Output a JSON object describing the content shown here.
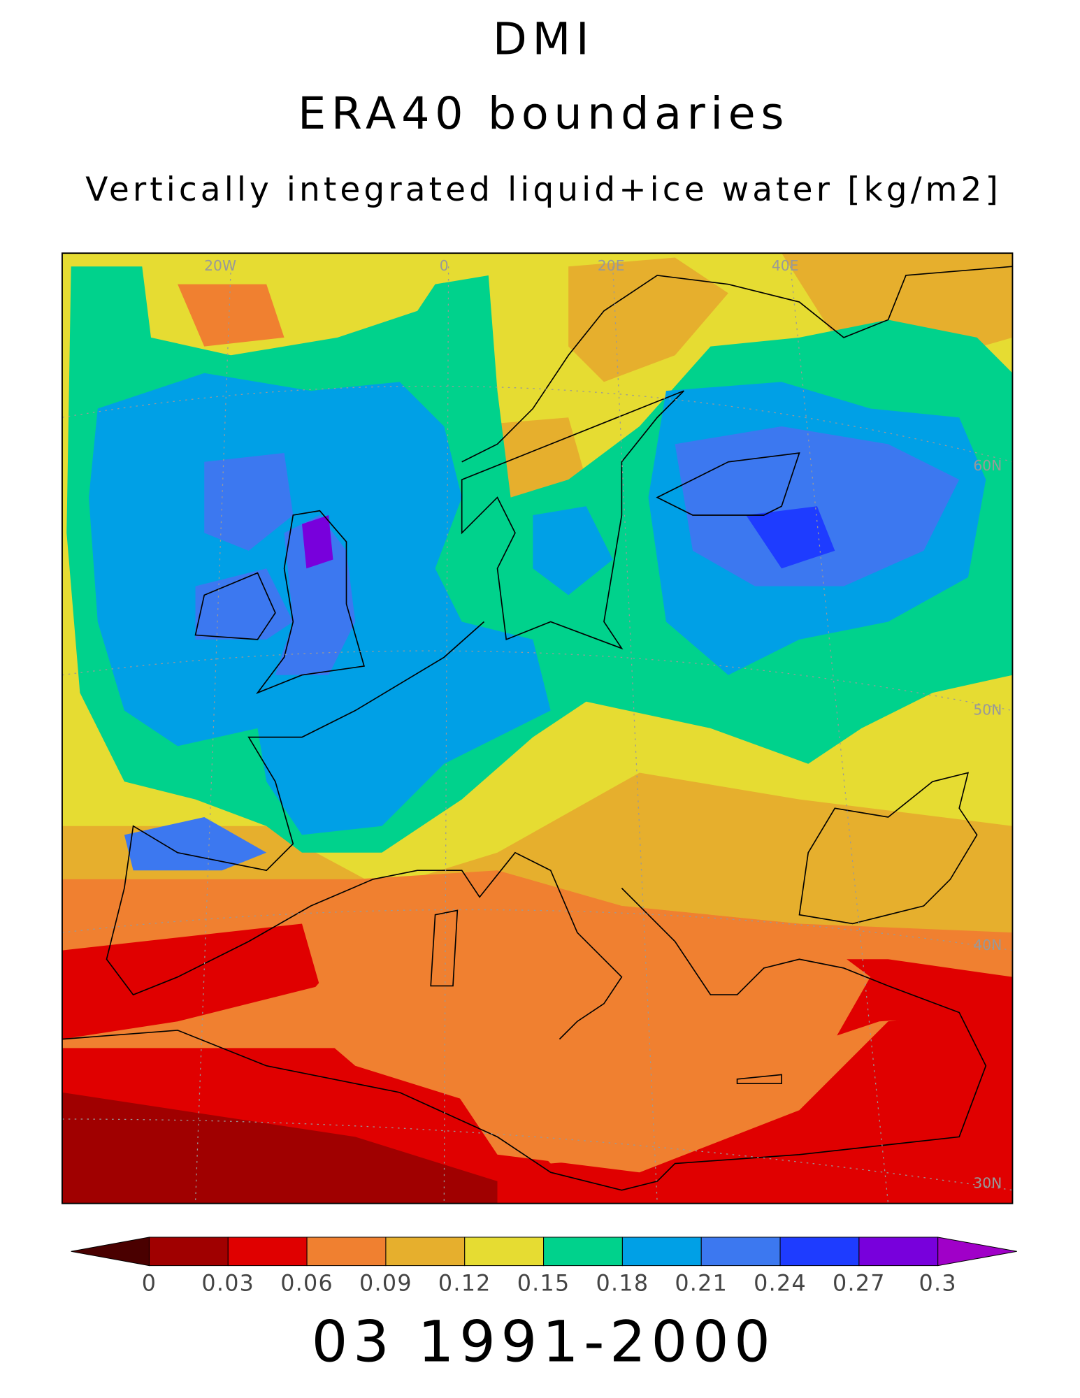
{
  "title": "DMI",
  "subtitle": "ERA40 boundaries",
  "variable": "Vertically integrated liquid+ice water [kg/m2]",
  "footer": "03 1991-2000",
  "map": {
    "lon_labels": [
      "20W",
      "0",
      "20E",
      "40E"
    ],
    "lat_labels": [
      "60N",
      "50N",
      "40N",
      "30N"
    ]
  },
  "colorbar": {
    "levels": [
      0,
      0.03,
      0.06,
      0.09,
      0.12,
      0.15,
      0.18,
      0.21,
      0.24,
      0.27,
      0.3
    ],
    "under_color": "#4a0000",
    "colors": [
      "#a00000",
      "#e00000",
      "#f08030",
      "#e6af2d",
      "#e6dc32",
      "#00d28c",
      "#00a0e6",
      "#3c78f0",
      "#1e3cff",
      "#7800dc"
    ],
    "over_color": "#a000c8"
  }
}
